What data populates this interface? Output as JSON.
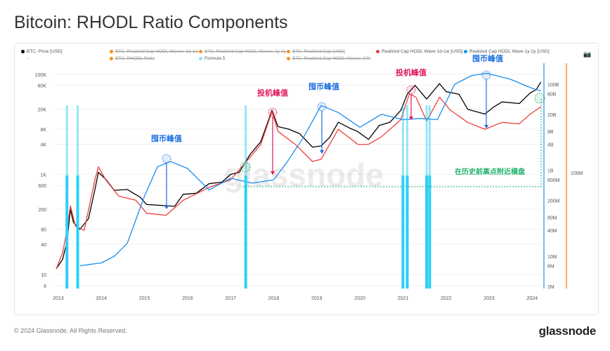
{
  "title": "Bitcoin: RHODL Ratio Components",
  "legend": [
    {
      "label": "BTC: Price [USD]",
      "color": "#000000",
      "active": true
    },
    {
      "label": "BTC: Realized Cap HODL Waves: 1d-1w",
      "color": "#f7931a",
      "active": false
    },
    {
      "label": "BTC: Realized Cap HODL Waves: 1y-2y",
      "color": "#f7931a",
      "active": false
    },
    {
      "label": "BTC: Realized Cap [USD]",
      "color": "#f7931a",
      "active": false
    },
    {
      "label": "Realized Cap HODL Wave 1d-1w [USD]",
      "color": "#f03e3e",
      "active": true
    },
    {
      "label": "Realized Cap HODL Wave 1y-2y [USD]",
      "color": "#1c8ef0",
      "active": true
    },
    {
      "label": "BTC: RHODL Ratio",
      "color": "#f7931a",
      "active": false
    },
    {
      "label": "Formula 5",
      "color": "#8fe0f7",
      "active": true
    },
    {
      "label": "BTC: Realized Cap HODL Waves: 24h",
      "color": "#f7931a",
      "active": false
    }
  ],
  "legend_dash": "-",
  "camera_icon": "camera-icon",
  "watermark": "glassnode",
  "footer": "© 2024 Glassnode. All Rights Reserved.",
  "brand": "glassnode",
  "annotations": [
    {
      "text": "囤币峰值",
      "year": 2015.5,
      "color": "#1c6fe0"
    },
    {
      "text": "投机峰值",
      "year": 2017.95,
      "color": "#e0185a"
    },
    {
      "text": "囤币峰值",
      "year": 2019.15,
      "color": "#1c6fe0"
    },
    {
      "text": "投机峰值",
      "year": 2021.2,
      "color": "#e0185a"
    },
    {
      "text": "囤币峰值",
      "year": 2022.95,
      "color": "#1c6fe0"
    },
    {
      "text": "在历史前高点附近横盘",
      "year": 2023.0,
      "color": "#1db36a"
    }
  ],
  "chart_data": {
    "type": "line",
    "title": "Bitcoin: RHODL Ratio Components",
    "x_ticks": [
      "2013",
      "2014",
      "2015",
      "2016",
      "2017",
      "2018",
      "2019",
      "2020",
      "2021",
      "2022",
      "2023",
      "2024"
    ],
    "y_left_ticks": [
      "100K",
      "60K",
      "20K",
      "8K",
      "4K",
      "1K",
      "600",
      "200",
      "80",
      "40",
      "10",
      "6"
    ],
    "y_left_values": [
      100000,
      60000,
      20000,
      8000,
      4000,
      1000,
      600,
      200,
      80,
      40,
      10,
      6
    ],
    "y_right_ticks": [
      "100B",
      "60B",
      "20B",
      "8B",
      "4B",
      "1B",
      "600M",
      "200M",
      "80M",
      "40M",
      "10M",
      "6M",
      "2M"
    ],
    "y_right_values": [
      100000000000.0,
      60000000000.0,
      20000000000.0,
      8000000000.0,
      4000000000.0,
      1000000000.0,
      600000000.0,
      200000000.0,
      80000000.0,
      40000000.0,
      10000000.0,
      6000000.0,
      2000000.0
    ],
    "y_right2_tick": "100M",
    "scale": "log",
    "series": [
      {
        "name": "BTC: Price [USD]",
        "axis": "left",
        "color": "#000000",
        "x": [
          2012.95,
          2013.1,
          2013.2,
          2013.28,
          2013.35,
          2013.5,
          2013.7,
          2013.85,
          2013.93,
          2014.1,
          2014.3,
          2014.6,
          2014.9,
          2015.05,
          2015.4,
          2015.7,
          2015.9,
          2016.2,
          2016.5,
          2016.8,
          2017.0,
          2017.2,
          2017.45,
          2017.7,
          2017.96,
          2018.1,
          2018.35,
          2018.6,
          2018.9,
          2019.1,
          2019.3,
          2019.5,
          2019.75,
          2019.95,
          2020.2,
          2020.45,
          2020.7,
          2020.95,
          2021.1,
          2021.28,
          2021.55,
          2021.85,
          2022.0,
          2022.3,
          2022.5,
          2022.9,
          2023.1,
          2023.3,
          2023.7,
          2023.95,
          2024.1,
          2024.2
        ],
        "y": [
          13,
          20,
          45,
          200,
          110,
          80,
          130,
          500,
          1100,
          800,
          480,
          500,
          350,
          250,
          240,
          230,
          400,
          420,
          650,
          700,
          1000,
          1100,
          2500,
          4500,
          19000,
          9000,
          8000,
          6500,
          3500,
          3700,
          5500,
          11000,
          8500,
          7200,
          5000,
          9500,
          11000,
          19000,
          40000,
          60000,
          32000,
          65000,
          45000,
          40000,
          20000,
          16000,
          22000,
          28000,
          26000,
          42000,
          50000,
          70000
        ]
      },
      {
        "name": "Realized Cap HODL Wave 1d-1w [USD]",
        "axis": "right",
        "color": "#f03e3e",
        "x": [
          2012.95,
          2013.1,
          2013.2,
          2013.28,
          2013.4,
          2013.6,
          2013.85,
          2013.93,
          2014.1,
          2014.4,
          2014.8,
          2015.05,
          2015.5,
          2015.9,
          2016.5,
          2017.0,
          2017.45,
          2017.7,
          2017.96,
          2018.1,
          2018.5,
          2018.9,
          2019.1,
          2019.5,
          2019.95,
          2020.2,
          2020.5,
          2020.95,
          2021.15,
          2021.3,
          2021.55,
          2021.85,
          2022.1,
          2022.5,
          2022.9,
          2023.3,
          2023.7,
          2023.95,
          2024.2
        ],
        "y": [
          5000000.0,
          12000000.0,
          40000000.0,
          150000000.0,
          50000000.0,
          40000000.0,
          600000000.0,
          1200000000.0,
          600000000.0,
          250000000.0,
          200000000.0,
          100000000.0,
          90000000.0,
          200000000.0,
          400000000.0,
          600000000.0,
          2000000000.0,
          4000000000.0,
          23000000000.0,
          8000000000.0,
          4000000000.0,
          1600000000.0,
          1800000000.0,
          9000000000.0,
          4000000000.0,
          4000000000.0,
          6000000000.0,
          15000000000.0,
          60000000000.0,
          50000000000.0,
          14000000000.0,
          50000000000.0,
          25000000000.0,
          13000000000.0,
          9000000000.0,
          13000000000.0,
          12000000000.0,
          20000000000.0,
          30000000000.0
        ]
      },
      {
        "name": "Realized Cap HODL Wave 1y-2y [USD]",
        "axis": "right",
        "color": "#1c8ef0",
        "x": [
          2013.5,
          2014.0,
          2014.3,
          2014.6,
          2015.0,
          2015.3,
          2015.6,
          2016.0,
          2016.5,
          2017.0,
          2017.5,
          2018.0,
          2018.3,
          2018.7,
          2019.1,
          2019.5,
          2020.0,
          2020.5,
          2021.0,
          2021.4,
          2021.8,
          2022.2,
          2022.6,
          2022.95,
          2023.5,
          2024.0,
          2024.2
        ],
        "y": [
          6000000.0,
          7000000.0,
          10000000.0,
          20000000.0,
          250000000.0,
          1200000000.0,
          1600000000.0,
          1100000000.0,
          350000000.0,
          650000000.0,
          500000000.0,
          600000000.0,
          1500000000.0,
          6000000000.0,
          32000000000.0,
          22000000000.0,
          10000000000.0,
          20000000000.0,
          15000000000.0,
          16000000000.0,
          15000000000.0,
          100000000000.0,
          160000000000.0,
          180000000000.0,
          130000000000.0,
          80000000000.0,
          70000000000.0
        ]
      },
      {
        "name": "Formula 5",
        "axis": "none",
        "color": "#2bd0f5",
        "type": "vertical-bars",
        "x": [
          2013.2,
          2013.45,
          2017.35,
          2021.0,
          2021.1,
          2021.55,
          2021.62
        ]
      }
    ]
  }
}
